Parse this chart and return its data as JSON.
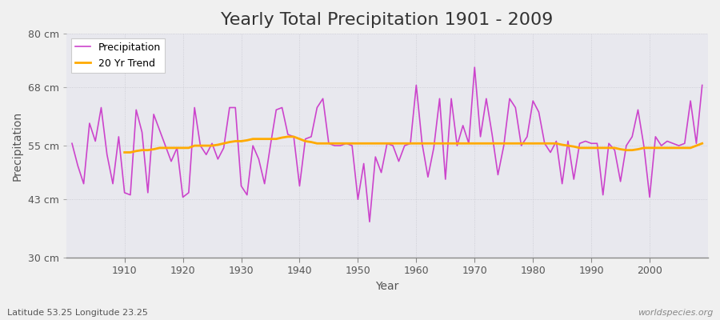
{
  "title": "Yearly Total Precipitation 1901 - 2009",
  "xlabel": "Year",
  "ylabel": "Precipitation",
  "subtitle": "Latitude 53.25 Longitude 23.25",
  "watermark": "worldspecies.org",
  "years": [
    1901,
    1902,
    1903,
    1904,
    1905,
    1906,
    1907,
    1908,
    1909,
    1910,
    1911,
    1912,
    1913,
    1914,
    1915,
    1916,
    1917,
    1918,
    1919,
    1920,
    1921,
    1922,
    1923,
    1924,
    1925,
    1926,
    1927,
    1928,
    1929,
    1930,
    1931,
    1932,
    1933,
    1934,
    1935,
    1936,
    1937,
    1938,
    1939,
    1940,
    1941,
    1942,
    1943,
    1944,
    1945,
    1946,
    1947,
    1948,
    1949,
    1950,
    1951,
    1952,
    1953,
    1954,
    1955,
    1956,
    1957,
    1958,
    1959,
    1960,
    1961,
    1962,
    1963,
    1964,
    1965,
    1966,
    1967,
    1968,
    1969,
    1970,
    1971,
    1972,
    1973,
    1974,
    1975,
    1976,
    1977,
    1978,
    1979,
    1980,
    1981,
    1982,
    1983,
    1984,
    1985,
    1986,
    1987,
    1988,
    1989,
    1990,
    1991,
    1992,
    1993,
    1994,
    1995,
    1996,
    1997,
    1998,
    1999,
    2000,
    2001,
    2002,
    2003,
    2004,
    2005,
    2006,
    2007,
    2008,
    2009
  ],
  "precip": [
    55.5,
    50.5,
    46.5,
    60.0,
    56.0,
    63.5,
    53.0,
    46.5,
    57.0,
    44.5,
    44.0,
    63.0,
    58.0,
    44.5,
    62.0,
    58.5,
    55.0,
    51.5,
    54.5,
    43.5,
    44.5,
    63.5,
    55.0,
    53.0,
    55.5,
    52.0,
    54.5,
    63.5,
    63.5,
    46.0,
    44.0,
    55.0,
    52.0,
    46.5,
    55.0,
    63.0,
    63.5,
    57.5,
    57.0,
    46.0,
    56.5,
    57.0,
    63.5,
    65.5,
    55.5,
    55.0,
    55.0,
    55.5,
    55.0,
    43.0,
    51.0,
    38.0,
    52.5,
    49.0,
    55.5,
    55.0,
    51.5,
    55.0,
    55.5,
    68.5,
    55.5,
    48.0,
    54.5,
    65.5,
    47.5,
    65.5,
    55.0,
    59.5,
    55.5,
    72.5,
    57.0,
    65.5,
    57.5,
    48.5,
    55.0,
    65.5,
    63.5,
    55.0,
    57.0,
    65.0,
    62.5,
    55.5,
    53.5,
    56.0,
    46.5,
    56.0,
    47.5,
    55.5,
    56.0,
    55.5,
    55.5,
    44.0,
    55.5,
    54.0,
    47.0,
    55.0,
    57.0,
    63.0,
    55.0,
    43.5,
    57.0,
    55.0,
    56.0,
    55.5,
    55.0,
    55.5,
    65.0,
    55.5,
    68.5
  ],
  "trend_years": [
    1910,
    1911,
    1912,
    1913,
    1914,
    1915,
    1916,
    1917,
    1918,
    1919,
    1920,
    1921,
    1922,
    1923,
    1924,
    1925,
    1926,
    1927,
    1928,
    1929,
    1930,
    1931,
    1932,
    1933,
    1934,
    1935,
    1936,
    1937,
    1938,
    1939,
    1940,
    1941,
    1942,
    1943,
    1944,
    1945,
    1946,
    1947,
    1948,
    1949,
    1950,
    1951,
    1952,
    1953,
    1954,
    1955,
    1956,
    1957,
    1958,
    1959,
    1960,
    1961,
    1962,
    1963,
    1964,
    1965,
    1966,
    1967,
    1968,
    1969,
    1970,
    1971,
    1972,
    1973,
    1974,
    1975,
    1976,
    1977,
    1978,
    1979,
    1980,
    1981,
    1982,
    1983,
    1984,
    1985,
    1986,
    1987,
    1988,
    1989,
    1990,
    1991,
    1992,
    1993,
    1994,
    1995,
    1996,
    1997,
    1998,
    1999,
    2000,
    2001,
    2002,
    2003,
    2004,
    2005,
    2006,
    2007,
    2008,
    2009
  ],
  "trend": [
    53.5,
    53.5,
    53.8,
    54.0,
    54.0,
    54.2,
    54.5,
    54.5,
    54.5,
    54.5,
    54.5,
    54.5,
    55.0,
    55.0,
    55.0,
    55.0,
    55.2,
    55.5,
    55.8,
    56.0,
    56.0,
    56.2,
    56.5,
    56.5,
    56.5,
    56.5,
    56.5,
    56.8,
    57.0,
    57.0,
    56.5,
    56.0,
    55.8,
    55.5,
    55.5,
    55.5,
    55.5,
    55.5,
    55.5,
    55.5,
    55.5,
    55.5,
    55.5,
    55.5,
    55.5,
    55.5,
    55.5,
    55.5,
    55.5,
    55.5,
    55.5,
    55.5,
    55.5,
    55.5,
    55.5,
    55.5,
    55.5,
    55.5,
    55.5,
    55.5,
    55.5,
    55.5,
    55.5,
    55.5,
    55.5,
    55.5,
    55.5,
    55.5,
    55.5,
    55.5,
    55.5,
    55.5,
    55.5,
    55.5,
    55.5,
    55.2,
    55.0,
    54.8,
    54.5,
    54.5,
    54.5,
    54.5,
    54.5,
    54.5,
    54.5,
    54.2,
    54.0,
    54.0,
    54.2,
    54.5,
    54.5,
    54.5,
    54.5,
    54.5,
    54.5,
    54.5,
    54.5,
    54.5,
    55.0,
    55.5
  ],
  "precip_color": "#cc44cc",
  "trend_color": "#ffaa00",
  "fig_bg_color": "#f0f0f0",
  "plot_bg_color": "#e8e8ee",
  "ylim": [
    30,
    80
  ],
  "xlim": [
    1900,
    2010
  ],
  "yticks": [
    30,
    43,
    55,
    68,
    80
  ],
  "ytick_labels": [
    "30 cm",
    "43 cm",
    "55 cm",
    "68 cm",
    "80 cm"
  ],
  "xticks": [
    1910,
    1920,
    1930,
    1940,
    1950,
    1960,
    1970,
    1980,
    1990,
    2000
  ],
  "title_fontsize": 16,
  "axis_label_fontsize": 10,
  "tick_fontsize": 9,
  "legend_fontsize": 9,
  "subtitle_fontsize": 8,
  "watermark_fontsize": 8
}
